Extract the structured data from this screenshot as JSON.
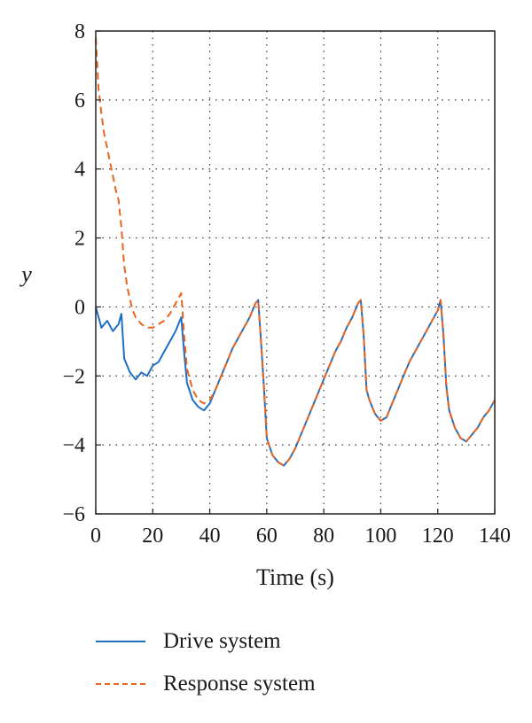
{
  "chart_data": {
    "type": "line",
    "xlabel": "Time (s)",
    "ylabel": "y",
    "xlim": [
      0,
      140
    ],
    "ylim": [
      -6,
      8
    ],
    "xticks": [
      0,
      20,
      40,
      60,
      80,
      100,
      120,
      140
    ],
    "yticks": [
      -6,
      -4,
      -2,
      0,
      2,
      4,
      6,
      8
    ],
    "xtick_labels": [
      "0",
      "20",
      "40",
      "60",
      "80",
      "100",
      "120",
      "140"
    ],
    "ytick_labels": [
      "−6",
      "−4",
      "−2",
      "0",
      "2",
      "4",
      "6",
      "8"
    ],
    "grid": true,
    "legend_position": "bottom",
    "series": [
      {
        "name": "Drive system",
        "color": "#1f6fc5",
        "style": "solid",
        "x": [
          0,
          2,
          4,
          6,
          8,
          9,
          10,
          11,
          12,
          14,
          16,
          18,
          20,
          22,
          24,
          26,
          28,
          30,
          31,
          32,
          34,
          36,
          38,
          40,
          42,
          44,
          46,
          48,
          50,
          52,
          54,
          56,
          57,
          58,
          59,
          60,
          62,
          64,
          66,
          68,
          70,
          72,
          74,
          76,
          78,
          80,
          82,
          84,
          86,
          88,
          90,
          92,
          93,
          94,
          95,
          96,
          98,
          100,
          102,
          104,
          106,
          108,
          110,
          112,
          114,
          116,
          118,
          120,
          121,
          122,
          123,
          124,
          126,
          128,
          130,
          132,
          134,
          136,
          138,
          140
        ],
        "values": [
          0.0,
          -0.6,
          -0.4,
          -0.7,
          -0.5,
          -0.2,
          -1.5,
          -1.7,
          -1.9,
          -2.1,
          -1.9,
          -2.0,
          -1.7,
          -1.6,
          -1.3,
          -1.0,
          -0.7,
          -0.3,
          -1.3,
          -2.2,
          -2.7,
          -2.9,
          -3.0,
          -2.8,
          -2.4,
          -2.0,
          -1.6,
          -1.2,
          -0.9,
          -0.6,
          -0.3,
          0.1,
          0.2,
          -1.0,
          -2.3,
          -3.8,
          -4.3,
          -4.5,
          -4.6,
          -4.4,
          -4.1,
          -3.7,
          -3.3,
          -2.9,
          -2.5,
          -2.1,
          -1.7,
          -1.3,
          -1.0,
          -0.6,
          -0.3,
          0.1,
          0.2,
          -0.8,
          -2.4,
          -2.7,
          -3.1,
          -3.3,
          -3.2,
          -2.8,
          -2.4,
          -2.0,
          -1.6,
          -1.3,
          -1.0,
          -0.7,
          -0.4,
          -0.1,
          0.2,
          -0.8,
          -2.3,
          -3.0,
          -3.5,
          -3.8,
          -3.9,
          -3.7,
          -3.5,
          -3.2,
          -3.0,
          -2.7
        ]
      },
      {
        "name": "Response system",
        "color": "#e8651f",
        "style": "dashed",
        "x": [
          0,
          1,
          2,
          3,
          4,
          5,
          6,
          7,
          8,
          9,
          10,
          11,
          12,
          13,
          14,
          16,
          18,
          20,
          22,
          24,
          26,
          28,
          30,
          31,
          32,
          34,
          36,
          38,
          40,
          42,
          44,
          46,
          48,
          50,
          52,
          54,
          56,
          57,
          58,
          59,
          60,
          62,
          64,
          66,
          68,
          70,
          72,
          74,
          76,
          78,
          80,
          82,
          84,
          86,
          88,
          90,
          92,
          93,
          94,
          95,
          96,
          98,
          100,
          102,
          104,
          106,
          108,
          110,
          112,
          114,
          116,
          118,
          120,
          121,
          122,
          123,
          124,
          126,
          128,
          130,
          132,
          134,
          136,
          138,
          140
        ],
        "values": [
          7.8,
          6.3,
          5.6,
          5.0,
          4.6,
          4.2,
          3.8,
          3.4,
          3.1,
          2.3,
          1.2,
          0.6,
          0.2,
          -0.1,
          -0.3,
          -0.5,
          -0.6,
          -0.6,
          -0.5,
          -0.4,
          -0.2,
          0.1,
          0.4,
          -0.8,
          -1.8,
          -2.4,
          -2.7,
          -2.8,
          -2.7,
          -2.4,
          -2.0,
          -1.6,
          -1.2,
          -0.9,
          -0.6,
          -0.3,
          0.1,
          0.2,
          -1.0,
          -2.3,
          -3.8,
          -4.3,
          -4.5,
          -4.6,
          -4.4,
          -4.1,
          -3.7,
          -3.3,
          -2.9,
          -2.5,
          -2.1,
          -1.7,
          -1.3,
          -1.0,
          -0.6,
          -0.3,
          0.1,
          0.2,
          -0.8,
          -2.4,
          -2.7,
          -3.1,
          -3.3,
          -3.2,
          -2.8,
          -2.4,
          -2.0,
          -1.6,
          -1.3,
          -1.0,
          -0.7,
          -0.4,
          -0.1,
          0.2,
          -0.8,
          -2.3,
          -3.0,
          -3.5,
          -3.8,
          -3.9,
          -3.7,
          -3.5,
          -3.2,
          -3.0,
          -2.7
        ]
      }
    ]
  },
  "legend": {
    "items": [
      {
        "label": "Drive system",
        "color": "#1f6fc5",
        "style": "solid"
      },
      {
        "label": "Response system",
        "color": "#e8651f",
        "style": "dashed"
      }
    ]
  }
}
